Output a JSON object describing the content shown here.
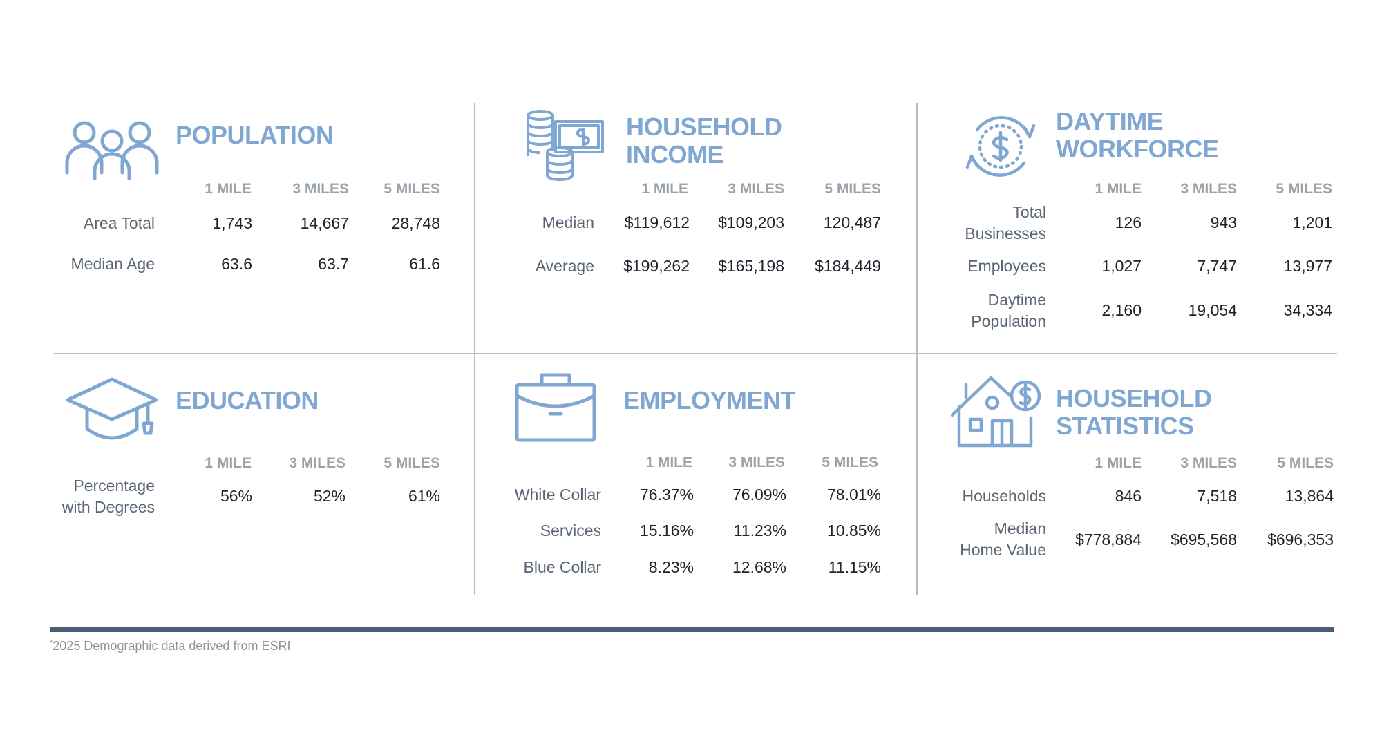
{
  "colors": {
    "accent": "#7fa7d2",
    "footer_bar": "#4b5d73",
    "divider": "#b9bdc2"
  },
  "footnote": {
    "star": "*",
    "text": "2025 Demographic data derived from ESRI"
  },
  "population": {
    "icon": "people-icon",
    "title": "POPULATION",
    "headers": [
      "1 MILE",
      "3 MILES",
      "5 MILES"
    ],
    "rows": [
      {
        "label": [
          "Area Total"
        ],
        "values": [
          "1,743",
          "14,667",
          "28,748"
        ]
      },
      {
        "label": [
          "Median Age"
        ],
        "values": [
          "63.6",
          "63.7",
          "61.6"
        ]
      }
    ]
  },
  "household_income": {
    "icon": "money-stack-icon",
    "title": [
      "HOUSEHOLD",
      "INCOME"
    ],
    "headers": [
      "1 MILE",
      "3 MILES",
      "5 MILES"
    ],
    "rows": [
      {
        "label": [
          "Median"
        ],
        "values": [
          "$119,612",
          "$109,203",
          "120,487"
        ]
      },
      {
        "label": [
          "Average"
        ],
        "values": [
          "$199,262",
          "$165,198",
          "$184,449"
        ]
      }
    ]
  },
  "daytime_workforce": {
    "icon": "dollar-cycle-icon",
    "title": [
      "DAYTIME",
      "WORKFORCE"
    ],
    "headers": [
      "1 MILE",
      "3 MILES",
      "5 MILES"
    ],
    "rows": [
      {
        "label": [
          "Total",
          "Businesses"
        ],
        "values": [
          "126",
          "943",
          "1,201"
        ]
      },
      {
        "label": [
          "Employees"
        ],
        "values": [
          "1,027",
          "7,747",
          "13,977"
        ]
      },
      {
        "label": [
          "Daytime",
          "Population"
        ],
        "values": [
          "2,160",
          "19,054",
          "34,334"
        ]
      }
    ]
  },
  "education": {
    "icon": "graduation-cap-icon",
    "title": "EDUCATION",
    "headers": [
      "1 MILE",
      "3 MILES",
      "5 MILES"
    ],
    "rows": [
      {
        "label": [
          "Percentage",
          "with Degrees"
        ],
        "values": [
          "56%",
          "52%",
          "61%"
        ]
      }
    ]
  },
  "employment": {
    "icon": "briefcase-icon",
    "title": "EMPLOYMENT",
    "headers": [
      "1 MILE",
      "3 MILES",
      "5 MILES"
    ],
    "rows": [
      {
        "label": [
          "White Collar"
        ],
        "values": [
          "76.37%",
          "76.09%",
          "78.01%"
        ]
      },
      {
        "label": [
          "Services"
        ],
        "values": [
          "15.16%",
          "11.23%",
          "10.85%"
        ]
      },
      {
        "label": [
          "Blue Collar"
        ],
        "values": [
          "8.23%",
          "12.68%",
          "11.15%"
        ]
      }
    ]
  },
  "household_statistics": {
    "icon": "house-dollar-icon",
    "title": [
      "HOUSEHOLD",
      "STATISTICS"
    ],
    "headers": [
      "1 MILE",
      "3 MILES",
      "5 MILES"
    ],
    "rows": [
      {
        "label": [
          "Households"
        ],
        "values": [
          "846",
          "7,518",
          "13,864"
        ]
      },
      {
        "label": [
          "Median",
          "Home Value"
        ],
        "values": [
          "$778,884",
          "$695,568",
          "$696,353"
        ]
      }
    ]
  }
}
